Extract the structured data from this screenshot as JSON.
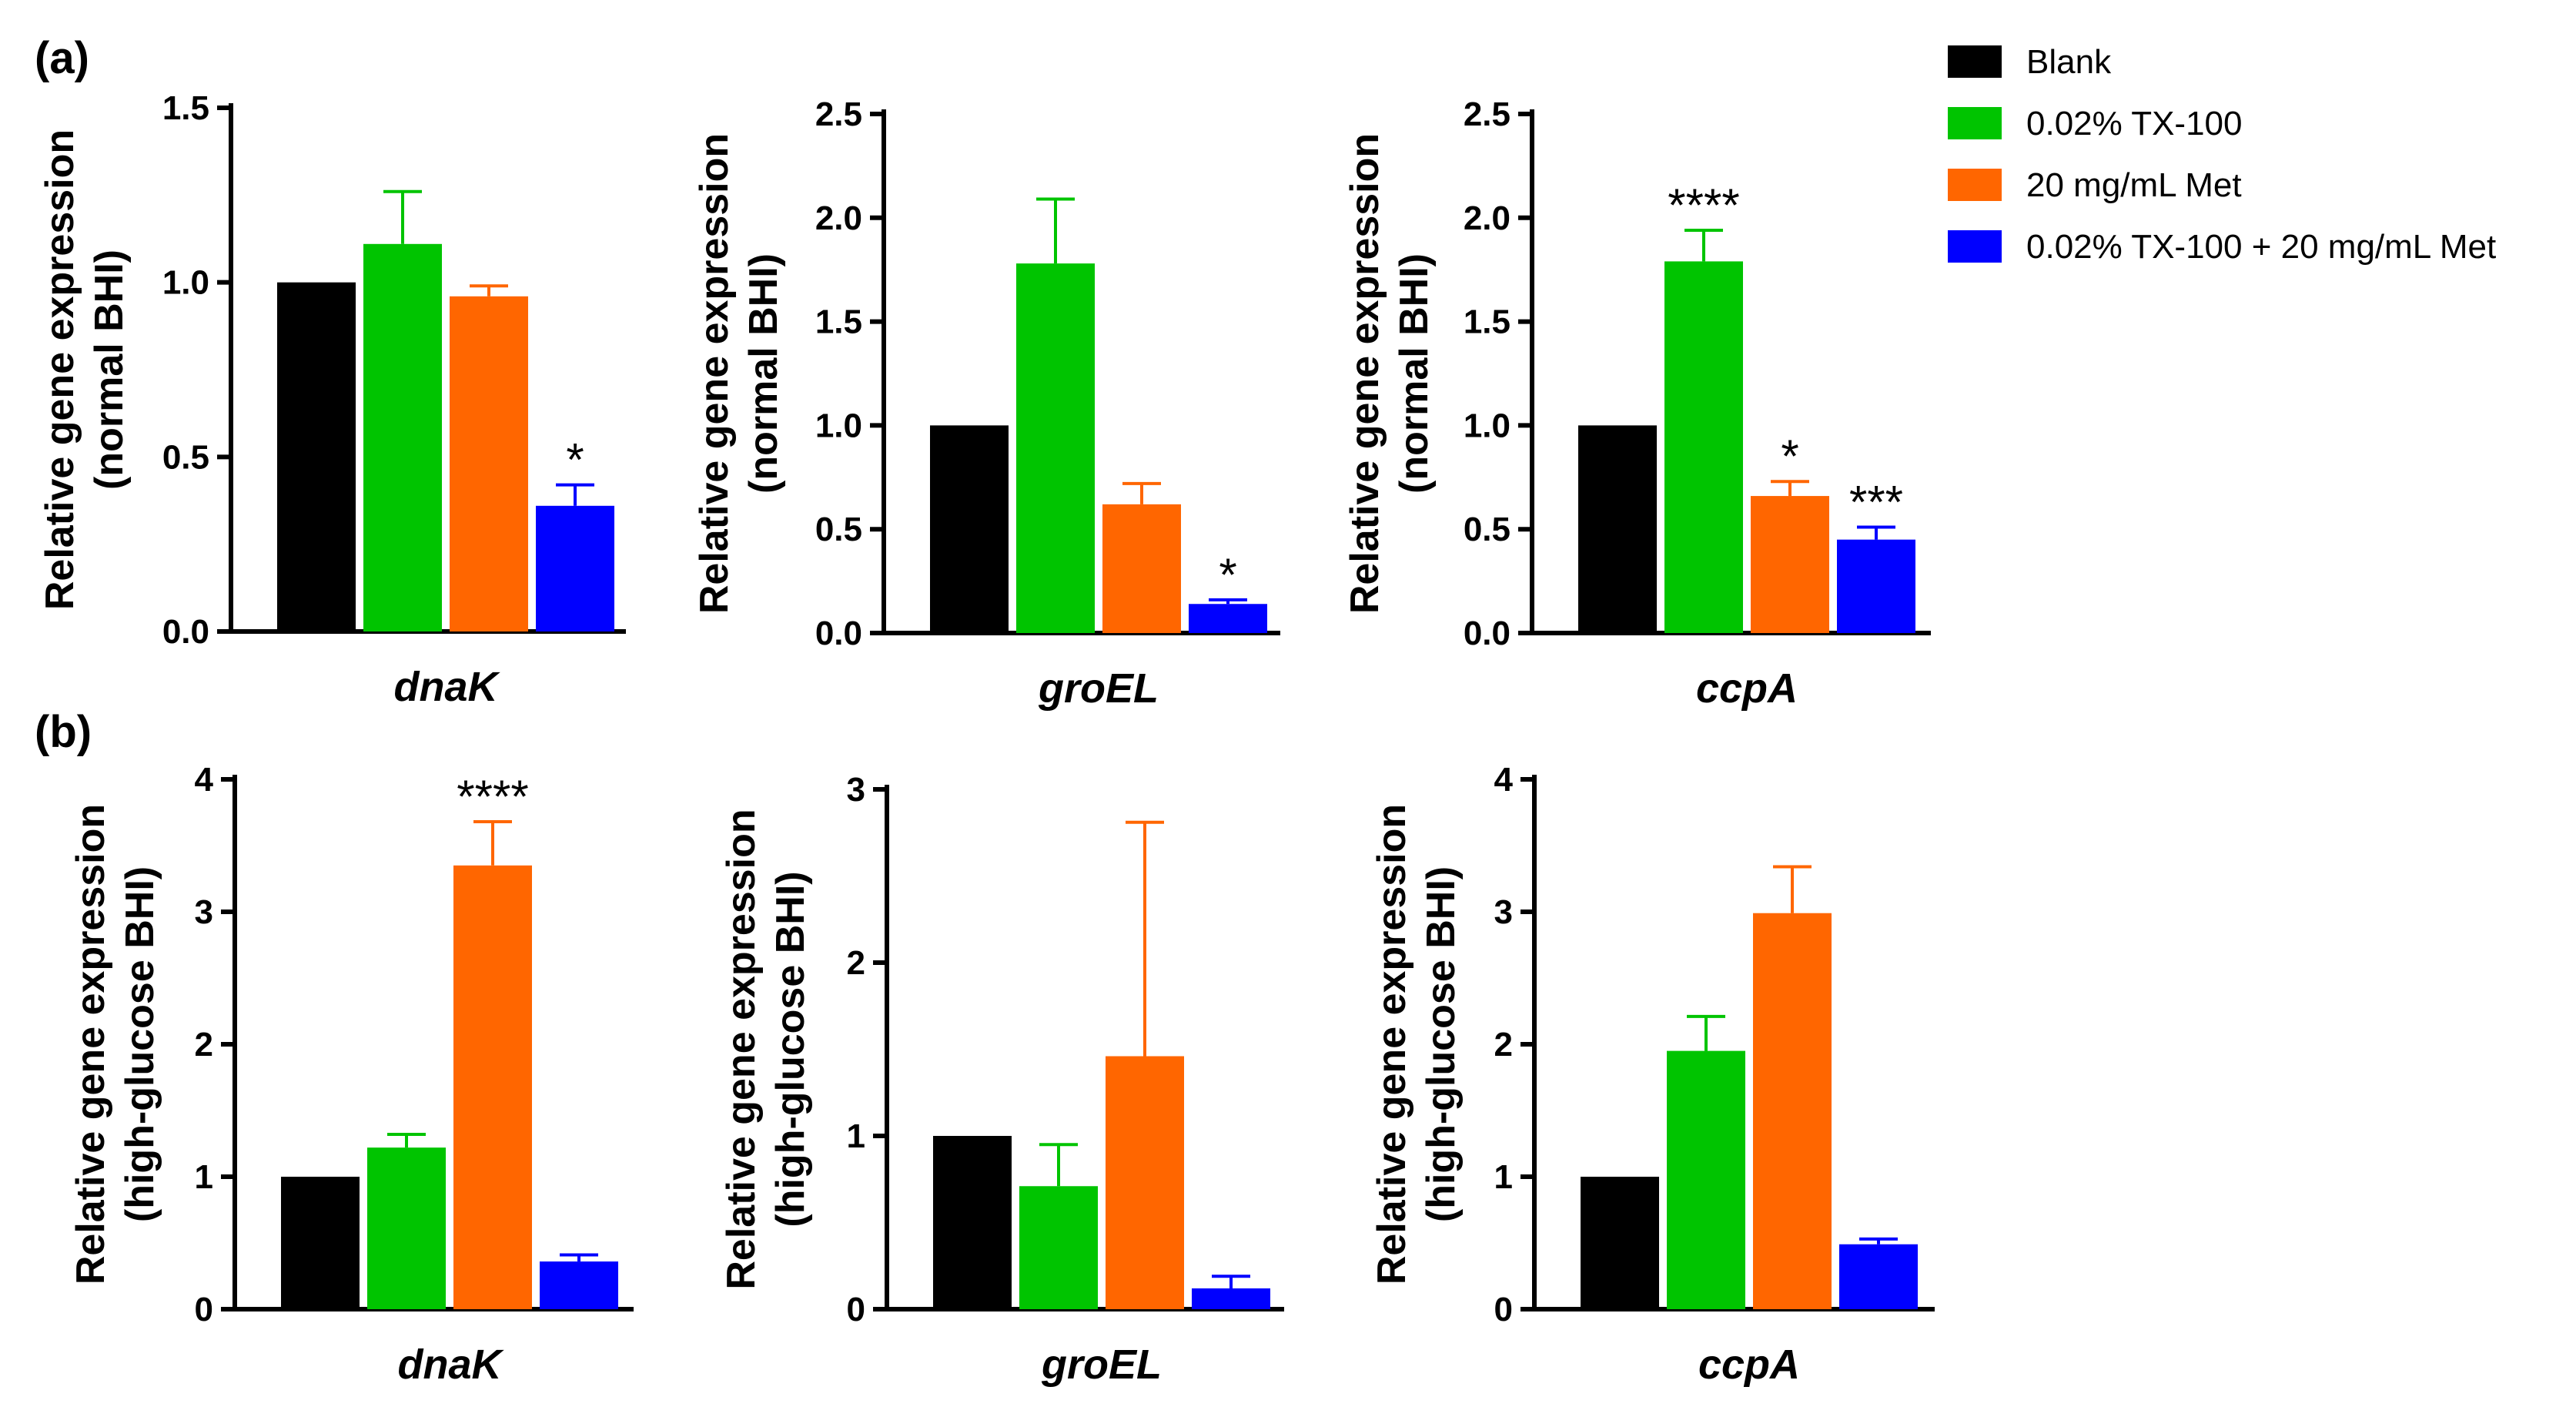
{
  "legend": {
    "entries": [
      {
        "label": "Blank",
        "color": "#000000"
      },
      {
        "label": "0.02% TX-100",
        "color": "#00c400"
      },
      {
        "label": "20 mg/mL Met",
        "color": "#ff6600"
      },
      {
        "label": "0.02% TX-100 + 20 mg/mL Met",
        "color": "#0000ff"
      }
    ]
  },
  "panels": [
    {
      "label": "(a)"
    },
    {
      "label": "(b)"
    }
  ],
  "chart_data": [
    {
      "type": "bar",
      "panel": "(a)",
      "title": "",
      "xlabel": "dnaK",
      "ylabel": [
        "Relative gene expression",
        "(normal BHI)"
      ],
      "ylim": [
        0,
        1.5
      ],
      "yticks": [
        0.0,
        0.5,
        1.0,
        1.5
      ],
      "tick_labels": [
        "0.0",
        "0.5",
        "1.0",
        "1.5"
      ],
      "values": [
        1.0,
        1.11,
        0.96,
        0.36
      ],
      "errors": [
        0,
        0.15,
        0.03,
        0.06
      ],
      "significance": [
        "",
        "",
        "",
        "*"
      ]
    },
    {
      "type": "bar",
      "panel": "(a)",
      "title": "",
      "xlabel": "groEL",
      "ylabel": [
        "Relative gene expression",
        "(normal BHI)"
      ],
      "ylim": [
        0,
        2.5
      ],
      "yticks": [
        0.0,
        0.5,
        1.0,
        1.5,
        2.0,
        2.5
      ],
      "tick_labels": [
        "0.0",
        "0.5",
        "1.0",
        "1.5",
        "2.0",
        "2.5"
      ],
      "values": [
        1.0,
        1.78,
        0.62,
        0.14
      ],
      "errors": [
        0,
        0.31,
        0.1,
        0.02
      ],
      "significance": [
        "",
        "",
        "",
        "*"
      ]
    },
    {
      "type": "bar",
      "panel": "(a)",
      "title": "",
      "xlabel": "ccpA",
      "ylabel": [
        "Relative gene expression",
        "(normal BHI)"
      ],
      "ylim": [
        0,
        2.5
      ],
      "yticks": [
        0.0,
        0.5,
        1.0,
        1.5,
        2.0,
        2.5
      ],
      "tick_labels": [
        "0.0",
        "0.5",
        "1.0",
        "1.5",
        "2.0",
        "2.5"
      ],
      "values": [
        1.0,
        1.79,
        0.66,
        0.45
      ],
      "errors": [
        0,
        0.15,
        0.07,
        0.06
      ],
      "significance": [
        "",
        "****",
        "*",
        "***"
      ]
    },
    {
      "type": "bar",
      "panel": "(b)",
      "title": "",
      "xlabel": "dnaK",
      "ylabel": [
        "Relative gene expression",
        "(high-glucose BHI)"
      ],
      "ylim": [
        0,
        4
      ],
      "yticks": [
        0,
        1,
        2,
        3,
        4
      ],
      "tick_labels": [
        "0",
        "1",
        "2",
        "3",
        "4"
      ],
      "values": [
        1.0,
        1.22,
        3.35,
        0.36
      ],
      "errors": [
        0,
        0.1,
        0.33,
        0.05
      ],
      "significance": [
        "",
        "",
        "****",
        ""
      ]
    },
    {
      "type": "bar",
      "panel": "(b)",
      "title": "",
      "xlabel": "groEL",
      "ylabel": [
        "Relative gene expression",
        "(high-glucose BHI)"
      ],
      "ylim": [
        0,
        3
      ],
      "yticks": [
        0,
        1,
        2,
        3
      ],
      "tick_labels": [
        "0",
        "1",
        "2",
        "3"
      ],
      "values": [
        1.0,
        0.71,
        1.46,
        0.12
      ],
      "errors": [
        0,
        0.24,
        1.35,
        0.07
      ],
      "significance": [
        "",
        "",
        "",
        ""
      ]
    },
    {
      "type": "bar",
      "panel": "(b)",
      "title": "",
      "xlabel": "ccpA",
      "ylabel": [
        "Relative gene expression",
        "(high-glucose BHI)"
      ],
      "ylim": [
        0,
        4
      ],
      "yticks": [
        0,
        1,
        2,
        3,
        4
      ],
      "tick_labels": [
        "0",
        "1",
        "2",
        "3",
        "4"
      ],
      "values": [
        1.0,
        1.95,
        2.99,
        0.49
      ],
      "errors": [
        0,
        0.26,
        0.35,
        0.04
      ],
      "significance": [
        "",
        "",
        "",
        ""
      ]
    }
  ]
}
